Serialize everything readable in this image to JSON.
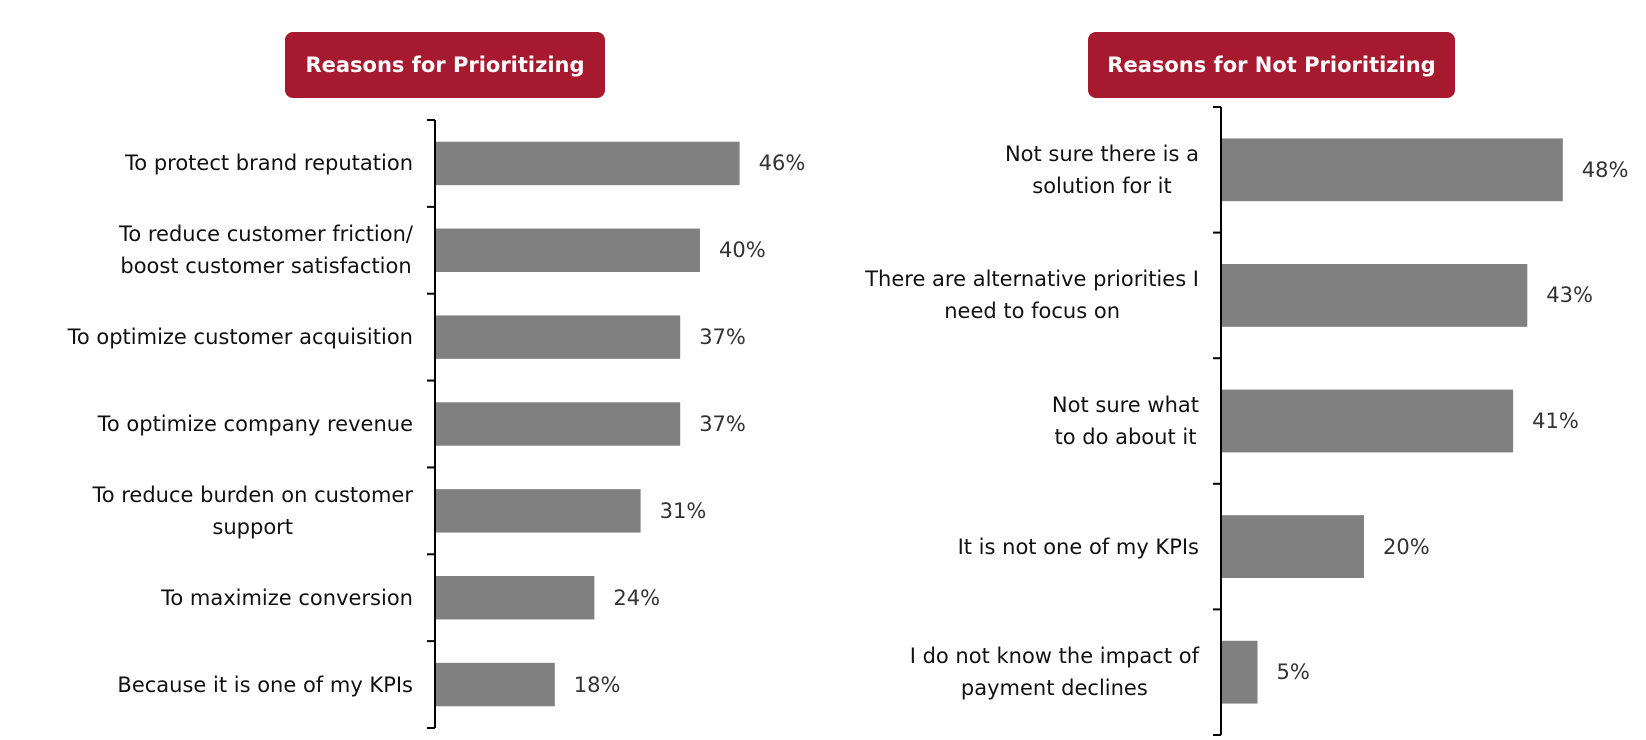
{
  "chart_data": [
    {
      "type": "bar",
      "orientation": "horizontal",
      "title": "Reasons for Prioritizing",
      "categories": [
        "To protect brand reputation",
        "To reduce customer friction/\nboost customer satisfaction",
        "To optimize customer acquisition",
        "To optimize company revenue",
        "To reduce burden on customer\nsupport",
        "To maximize conversion",
        "Because it is one of my KPIs"
      ],
      "values": [
        46,
        40,
        37,
        37,
        31,
        24,
        18
      ],
      "value_labels": [
        "46%",
        "40%",
        "37%",
        "37%",
        "31%",
        "24%",
        "18%"
      ],
      "color": "#808080",
      "title_color": "#a6192e"
    },
    {
      "type": "bar",
      "orientation": "horizontal",
      "title": "Reasons for Not Prioritizing",
      "categories": [
        "Not sure there is a\nsolution for it",
        "There are alternative priorities I\nneed to focus on",
        "Not sure what\nto do about it",
        "It is not one of my KPIs",
        "I do not know the impact of\npayment declines"
      ],
      "values": [
        48,
        43,
        41,
        20,
        5
      ],
      "value_labels": [
        "48%",
        "43%",
        "41%",
        "20%",
        "5%"
      ],
      "color": "#808080",
      "title_color": "#a6192e"
    }
  ]
}
